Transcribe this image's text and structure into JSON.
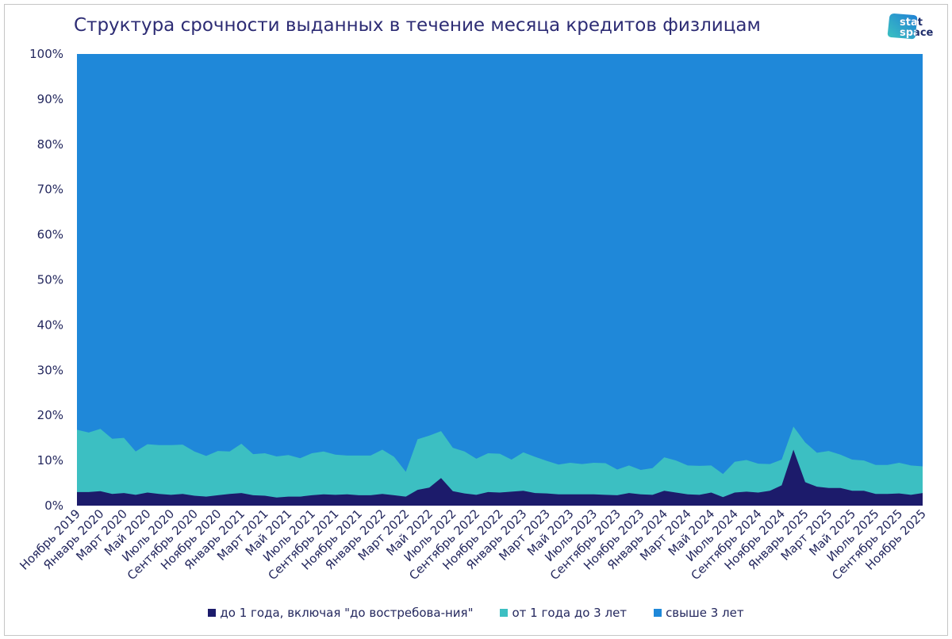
{
  "logo": {
    "line1": "stat",
    "line2": "space"
  },
  "colors": {
    "title": "#2d2c74",
    "axis_text": "#24285e",
    "logo_light": "#3cc3c0",
    "logo_dark": "#1f7fd6"
  },
  "chart_data": {
    "type": "area",
    "stacked": "percent",
    "title": "Структура срочности выданных в течение месяца кредитов физлицам",
    "xlabel": "",
    "ylabel": "",
    "ylim": [
      0,
      100
    ],
    "y_ticks": [
      0,
      10,
      20,
      30,
      40,
      50,
      60,
      70,
      80,
      90,
      100
    ],
    "y_tick_labels": [
      "0%",
      "10%",
      "20%",
      "30%",
      "40%",
      "50%",
      "60%",
      "70%",
      "80%",
      "90%",
      "100%"
    ],
    "grid": false,
    "legend": "bottom",
    "categories": [
      "Ноябрь 2019",
      "",
      "Январь 2020",
      "",
      "Март 2020",
      "",
      "Май 2020",
      "",
      "Июль 2020",
      "",
      "Сентябрь 2020",
      "",
      "Ноябрь 2020",
      "",
      "Январь 2021",
      "",
      "Март 2021",
      "",
      "Май 2021",
      "",
      "Июль 2021",
      "",
      "Сентябрь 2021",
      "",
      "Ноябрь 2021",
      "",
      "Январь 2022",
      "",
      "Март 2022",
      "",
      "Май 2022",
      "",
      "Июль 2022",
      "",
      "Сентябрь 2022",
      "",
      "Ноябрь 2022",
      "",
      "Январь 2023",
      "",
      "Март 2023",
      "",
      "Май 2023",
      "",
      "Июль 2023",
      "",
      "Сентябрь 2023",
      "",
      "Ноябрь 2023",
      "",
      "Январь 2024",
      "",
      "Март 2024",
      "",
      "Май 2024",
      "",
      "Июль 2024",
      "",
      "Сентябрь 2024",
      "",
      "Ноябрь 2024",
      "",
      "Январь 2025",
      "",
      "Март 2025",
      "",
      "Май 2025",
      "",
      "Июль 2025",
      "",
      "Сентябрь 2025",
      "",
      "Ноябрь 2025"
    ],
    "series": [
      {
        "name": "до 1 года, включая \"до востребова-ния\"",
        "color": "#1c1b6b",
        "values": [
          3.0,
          3.0,
          3.2,
          2.6,
          2.8,
          2.4,
          2.9,
          2.6,
          2.4,
          2.6,
          2.2,
          2.0,
          2.3,
          2.6,
          2.8,
          2.3,
          2.2,
          1.8,
          2.0,
          2.0,
          2.3,
          2.5,
          2.4,
          2.5,
          2.3,
          2.3,
          2.6,
          2.3,
          2.0,
          3.5,
          4.0,
          6.1,
          3.2,
          2.7,
          2.4,
          3.0,
          2.9,
          3.1,
          3.3,
          2.8,
          2.7,
          2.5,
          2.5,
          2.5,
          2.5,
          2.4,
          2.3,
          2.8,
          2.5,
          2.4,
          3.3,
          2.9,
          2.5,
          2.4,
          2.9,
          1.9,
          2.9,
          3.1,
          2.9,
          3.3,
          4.5,
          12.4,
          5.2,
          4.2,
          3.9,
          3.9,
          3.3,
          3.3,
          2.6,
          2.6,
          2.7,
          2.4,
          2.8
        ]
      },
      {
        "name": "от 1 года до 3 лет",
        "color": "#3cbfc2",
        "values": [
          13.8,
          13.2,
          13.8,
          12.2,
          12.2,
          9.6,
          10.7,
          10.8,
          11.0,
          10.9,
          9.8,
          9.0,
          9.8,
          9.4,
          10.9,
          9.1,
          9.4,
          9.1,
          9.2,
          8.5,
          9.3,
          9.5,
          8.9,
          8.6,
          8.8,
          8.8,
          9.8,
          8.5,
          5.5,
          11.2,
          11.5,
          10.4,
          9.6,
          9.3,
          8.0,
          8.6,
          8.6,
          7.1,
          8.5,
          8.0,
          7.2,
          6.6,
          7.0,
          6.7,
          7.0,
          7.0,
          5.7,
          6.1,
          5.4,
          5.9,
          7.4,
          7.1,
          6.4,
          6.4,
          6.0,
          5.1,
          6.8,
          7.0,
          6.4,
          5.9,
          5.7,
          5.1,
          8.8,
          7.5,
          8.2,
          7.4,
          6.9,
          6.7,
          6.4,
          6.4,
          6.8,
          6.5,
          5.9
        ]
      },
      {
        "name": "свыше 3 лет",
        "color": "#1f88d9",
        "values": [
          83.2,
          83.8,
          83.0,
          85.2,
          85.0,
          88.0,
          86.4,
          86.6,
          86.6,
          86.5,
          88.0,
          89.0,
          87.9,
          88.0,
          86.3,
          88.6,
          88.4,
          89.1,
          88.8,
          89.5,
          88.4,
          88.0,
          88.7,
          88.9,
          88.9,
          88.9,
          87.6,
          89.2,
          92.5,
          85.3,
          84.5,
          83.5,
          87.2,
          88.0,
          89.6,
          88.4,
          88.5,
          89.8,
          88.2,
          89.2,
          90.1,
          90.9,
          90.5,
          90.8,
          90.5,
          90.6,
          92.0,
          91.1,
          92.1,
          91.7,
          89.3,
          90.0,
          91.1,
          91.2,
          91.1,
          93.0,
          90.3,
          89.9,
          90.7,
          90.8,
          89.8,
          82.5,
          86.0,
          88.3,
          87.9,
          88.7,
          89.8,
          90.0,
          91.0,
          91.0,
          90.5,
          91.1,
          91.3
        ]
      }
    ]
  }
}
